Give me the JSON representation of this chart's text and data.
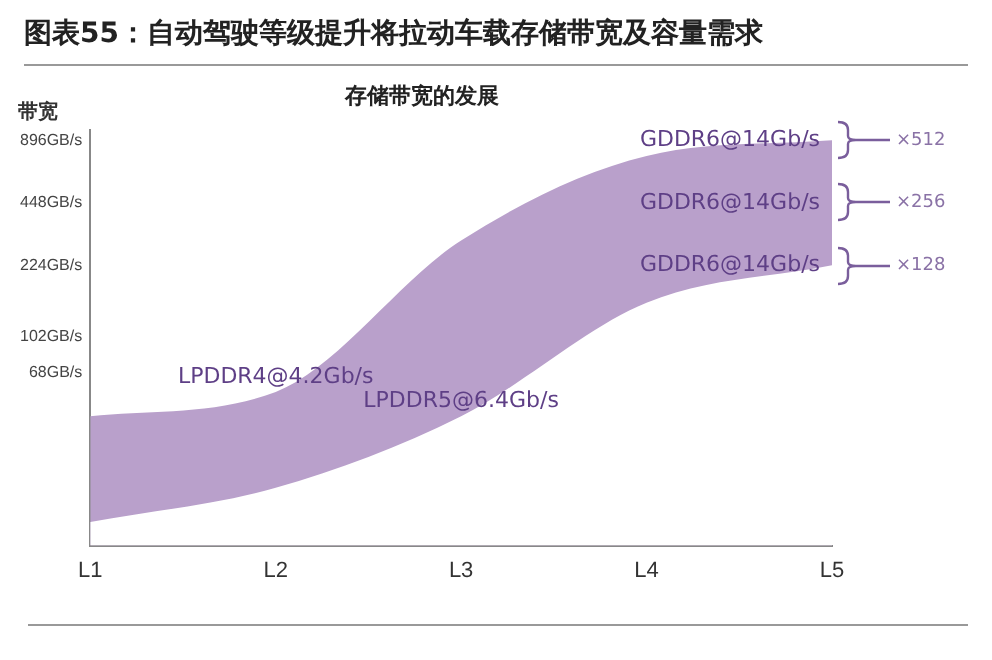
{
  "chart_data": {
    "type": "area",
    "title": "图表55：自动驾驶等级提升将拉动车载存储带宽及容量需求",
    "subtitle": "存储带宽的发展",
    "ylabel": "带宽",
    "categories": [
      "L1",
      "L2",
      "L3",
      "L4",
      "L5"
    ],
    "series": [
      {
        "color": "#b9a0cb",
        "values": [
          42,
          55,
          295,
          753,
          896
        ]
      },
      {
        "color": "#ffffff",
        "values": [
          13,
          19,
          42,
          148,
          224
        ]
      }
    ],
    "log": true,
    "ylim": [
      10,
      1000
    ],
    "yticks": [
      {
        "value": 68,
        "label": "68GB/s"
      },
      {
        "value": 102,
        "label": "102GB/s"
      },
      {
        "value": 224,
        "label": "224GB/s"
      },
      {
        "value": 448,
        "label": "448GB/s"
      },
      {
        "value": 896,
        "label": "896GB/s"
      }
    ],
    "annotations": [
      {
        "text": "LPDDR4@4.2Gb/s",
        "x": "L2",
        "y": 55
      },
      {
        "text": "LPDDR5@6.4Gb/s",
        "x": "L3",
        "y": 42
      },
      {
        "text": "GDDR6@14Gb/s",
        "x": "L5",
        "y": 896
      },
      {
        "text": "GDDR6@14Gb/s",
        "x": "L5",
        "y": 448
      },
      {
        "text": "GDDR6@14Gb/s",
        "x": "L5",
        "y": 224
      },
      "×512",
      "×256",
      "×128"
    ]
  }
}
